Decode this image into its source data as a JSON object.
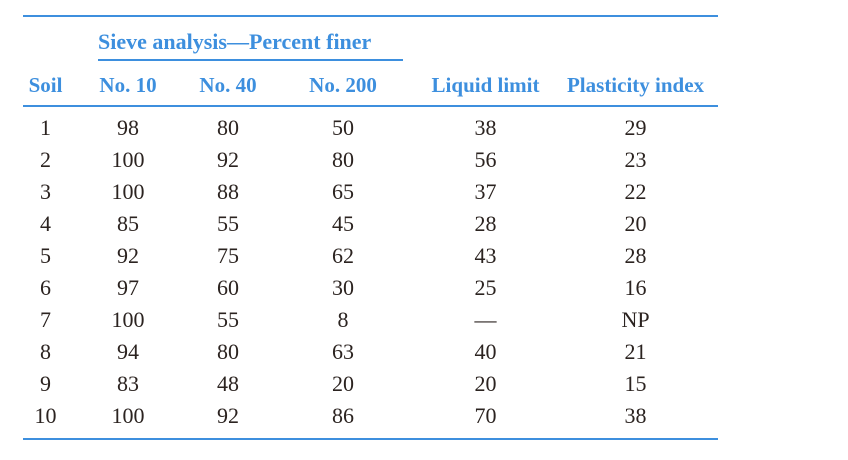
{
  "table": {
    "span_header": "Sieve analysis—Percent finer",
    "columns": [
      "Soil",
      "No. 10",
      "No. 40",
      "No. 200",
      "Liquid limit",
      "Plasticity index"
    ],
    "rows": [
      [
        "1",
        "98",
        "80",
        "50",
        "38",
        "29"
      ],
      [
        "2",
        "100",
        "92",
        "80",
        "56",
        "23"
      ],
      [
        "3",
        "100",
        "88",
        "65",
        "37",
        "22"
      ],
      [
        "4",
        "85",
        "55",
        "45",
        "28",
        "20"
      ],
      [
        "5",
        "92",
        "75",
        "62",
        "43",
        "28"
      ],
      [
        "6",
        "97",
        "60",
        "30",
        "25",
        "16"
      ],
      [
        "7",
        "100",
        "55",
        "8",
        "—",
        "NP"
      ],
      [
        "8",
        "94",
        "80",
        "63",
        "40",
        "21"
      ],
      [
        "9",
        "83",
        "48",
        "20",
        "20",
        "15"
      ],
      [
        "10",
        "100",
        "92",
        "86",
        "70",
        "38"
      ]
    ],
    "colors": {
      "accent": "#3d8fde",
      "text": "#2b2320",
      "background": "#ffffff"
    }
  }
}
